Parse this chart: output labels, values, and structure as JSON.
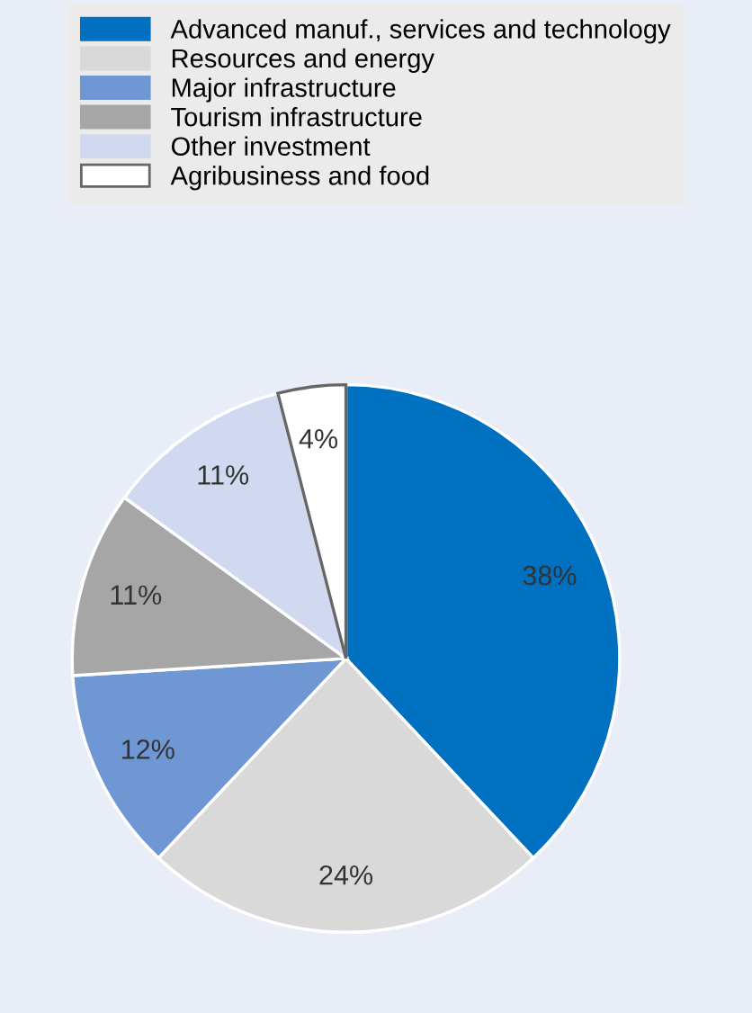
{
  "chart_data": {
    "type": "pie",
    "categories": [
      "Advanced manuf., services and technology",
      "Resources and energy",
      "Major infrastructure",
      "Tourism infrastructure",
      "Other investment",
      "Agribusiness and food"
    ],
    "values": [
      38,
      24,
      12,
      11,
      11,
      4
    ],
    "colors": [
      "#0070c0",
      "#d9d9d9",
      "#6f97d3",
      "#a6a6a6",
      "#d0d9ef",
      "#ffffff"
    ],
    "value_labels": [
      "38%",
      "24%",
      "12%",
      "11%",
      "11%",
      "4%"
    ],
    "legend": "top"
  }
}
